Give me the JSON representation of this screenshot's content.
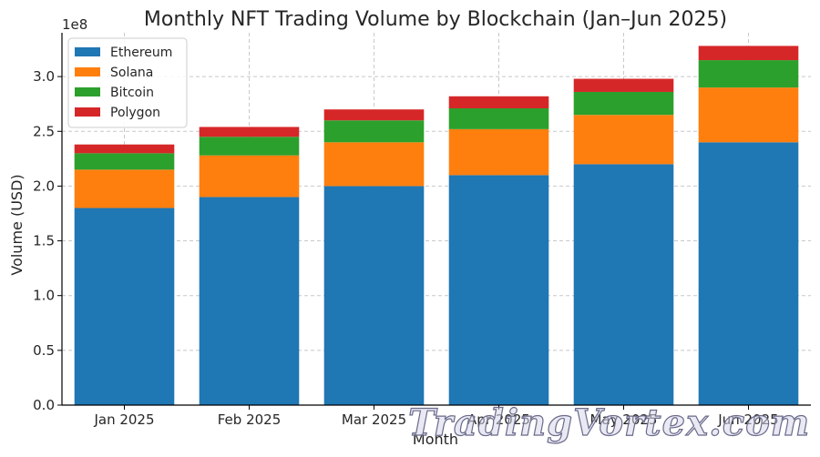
{
  "chart_data": {
    "type": "bar",
    "stacked": true,
    "title": "Monthly NFT Trading Volume by Blockchain (Jan–Jun 2025)",
    "xlabel": "Month",
    "ylabel": "Volume (USD)",
    "offset_text": "1e8",
    "ylim": [
      0,
      3.4
    ],
    "yticks": [
      0.0,
      0.5,
      1.0,
      1.5,
      2.0,
      2.5,
      3.0
    ],
    "ytick_labels": [
      "0.0",
      "0.5",
      "1.0",
      "1.5",
      "2.0",
      "2.5",
      "3.0"
    ],
    "categories": [
      "Jan 2025",
      "Feb 2025",
      "Mar 2025",
      "Apr 2025",
      "May 2025",
      "Jun 2025"
    ],
    "series": [
      {
        "name": "Ethereum",
        "color": "#1f77b4",
        "values": [
          1.8,
          1.9,
          2.0,
          2.1,
          2.2,
          2.4
        ]
      },
      {
        "name": "Solana",
        "color": "#ff7f0e",
        "values": [
          0.35,
          0.38,
          0.4,
          0.42,
          0.45,
          0.5
        ]
      },
      {
        "name": "Bitcoin",
        "color": "#2ca02c",
        "values": [
          0.15,
          0.17,
          0.2,
          0.19,
          0.21,
          0.25
        ]
      },
      {
        "name": "Polygon",
        "color": "#d62728",
        "values": [
          0.08,
          0.09,
          0.1,
          0.11,
          0.12,
          0.13
        ]
      }
    ],
    "grid": true,
    "legend_position": "top-left"
  },
  "watermark": "TradingVortex.com"
}
